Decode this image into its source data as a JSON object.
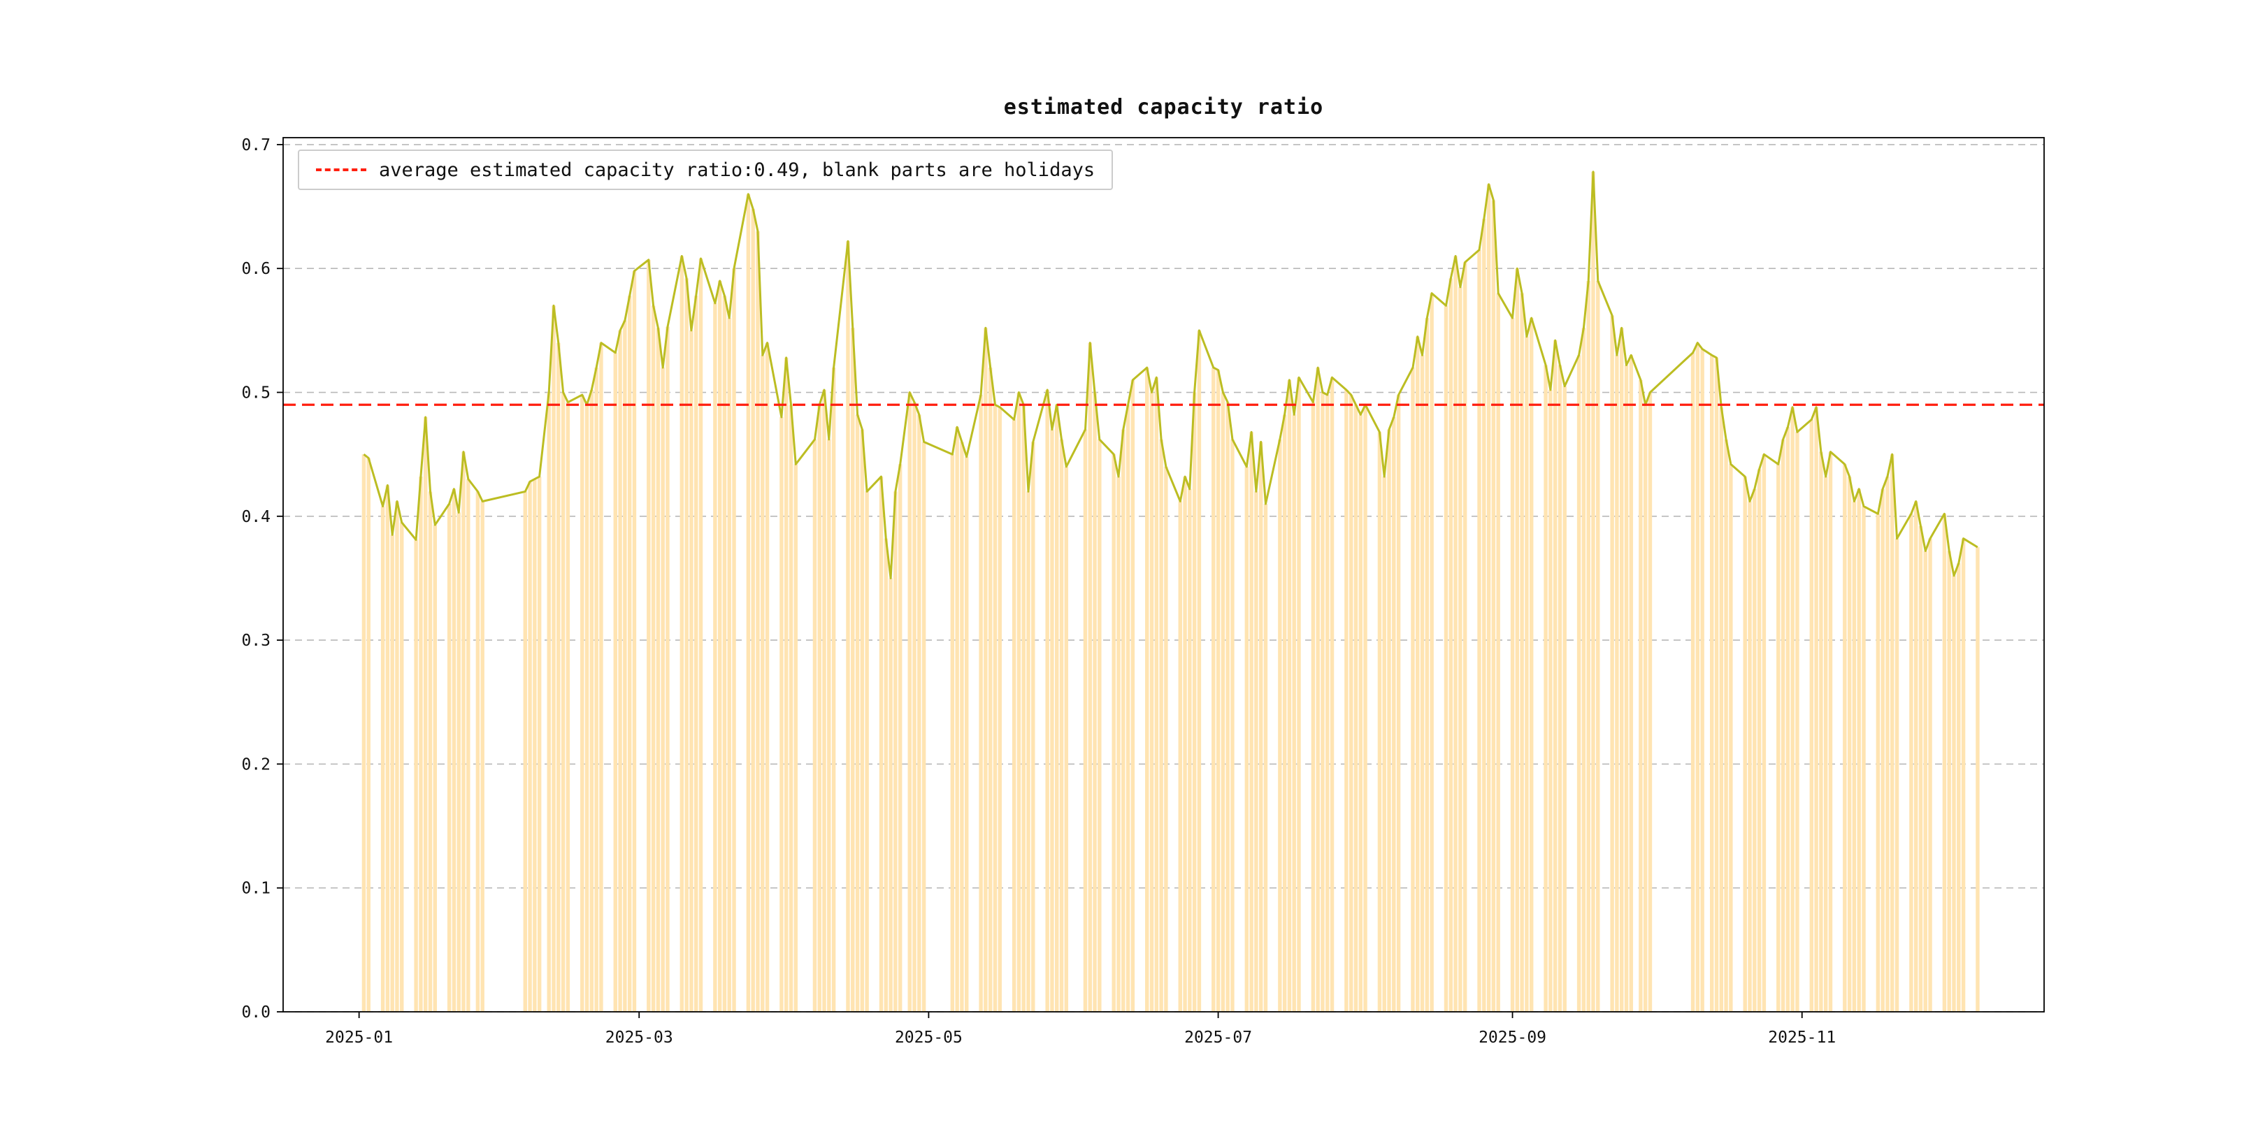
{
  "chart_data": {
    "type": "line",
    "title": "estimated capacity ratio",
    "legend_label": "average estimated capacity ratio:0.49, blank parts are holidays",
    "legend_position": "upper left",
    "average_value": 0.49,
    "ylim": [
      0.0,
      0.7
    ],
    "yticks": [
      0.0,
      0.1,
      0.2,
      0.3,
      0.4,
      0.5,
      0.6,
      0.7
    ],
    "ytick_labels": [
      "0.0",
      "0.1",
      "0.2",
      "0.3",
      "0.4",
      "0.5",
      "0.6",
      "0.7"
    ],
    "xticks": [
      {
        "label": "2025-01",
        "date": "2025-01-01"
      },
      {
        "label": "2025-03",
        "date": "2025-03-01"
      },
      {
        "label": "2025-05",
        "date": "2025-05-01"
      },
      {
        "label": "2025-07",
        "date": "2025-07-01"
      },
      {
        "label": "2025-09",
        "date": "2025-09-01"
      },
      {
        "label": "2025-11",
        "date": "2025-11-01"
      }
    ],
    "x_domain": [
      "2024-12-16",
      "2025-12-22"
    ],
    "grid": {
      "axis": "y",
      "style": "dashed"
    },
    "colors": {
      "line": "#bcbd22",
      "fill": "#ffe4b2",
      "average": "#ff1f0f",
      "grid": "#b8b8b8",
      "axes": "#000000",
      "background": "#ffffff"
    },
    "series": [
      {
        "name": "estimated capacity ratio",
        "dates": [
          "2025-01-02",
          "2025-01-03",
          "2025-01-06",
          "2025-01-07",
          "2025-01-08",
          "2025-01-09",
          "2025-01-10",
          "2025-01-13",
          "2025-01-14",
          "2025-01-15",
          "2025-01-16",
          "2025-01-17",
          "2025-01-20",
          "2025-01-21",
          "2025-01-22",
          "2025-01-23",
          "2025-01-24",
          "2025-01-26",
          "2025-01-27",
          "2025-02-05",
          "2025-02-06",
          "2025-02-07",
          "2025-02-08",
          "2025-02-10",
          "2025-02-11",
          "2025-02-12",
          "2025-02-13",
          "2025-02-14",
          "2025-02-17",
          "2025-02-18",
          "2025-02-19",
          "2025-02-20",
          "2025-02-21",
          "2025-02-24",
          "2025-02-25",
          "2025-02-26",
          "2025-02-27",
          "2025-02-28",
          "2025-03-03",
          "2025-03-04",
          "2025-03-05",
          "2025-03-06",
          "2025-03-07",
          "2025-03-10",
          "2025-03-11",
          "2025-03-12",
          "2025-03-13",
          "2025-03-14",
          "2025-03-17",
          "2025-03-18",
          "2025-03-19",
          "2025-03-20",
          "2025-03-21",
          "2025-03-24",
          "2025-03-25",
          "2025-03-26",
          "2025-03-27",
          "2025-03-28",
          "2025-03-31",
          "2025-04-01",
          "2025-04-02",
          "2025-04-03",
          "2025-04-07",
          "2025-04-08",
          "2025-04-09",
          "2025-04-10",
          "2025-04-11",
          "2025-04-14",
          "2025-04-15",
          "2025-04-16",
          "2025-04-17",
          "2025-04-18",
          "2025-04-21",
          "2025-04-22",
          "2025-04-23",
          "2025-04-24",
          "2025-04-25",
          "2025-04-27",
          "2025-04-28",
          "2025-04-29",
          "2025-04-30",
          "2025-05-06",
          "2025-05-07",
          "2025-05-08",
          "2025-05-09",
          "2025-05-12",
          "2025-05-13",
          "2025-05-14",
          "2025-05-15",
          "2025-05-16",
          "2025-05-19",
          "2025-05-20",
          "2025-05-21",
          "2025-05-22",
          "2025-05-23",
          "2025-05-26",
          "2025-05-27",
          "2025-05-28",
          "2025-05-29",
          "2025-05-30",
          "2025-06-03",
          "2025-06-04",
          "2025-06-05",
          "2025-06-06",
          "2025-06-09",
          "2025-06-10",
          "2025-06-11",
          "2025-06-12",
          "2025-06-13",
          "2025-06-16",
          "2025-06-17",
          "2025-06-18",
          "2025-06-19",
          "2025-06-20",
          "2025-06-23",
          "2025-06-24",
          "2025-06-25",
          "2025-06-26",
          "2025-06-27",
          "2025-06-30",
          "2025-07-01",
          "2025-07-02",
          "2025-07-03",
          "2025-07-04",
          "2025-07-07",
          "2025-07-08",
          "2025-07-09",
          "2025-07-10",
          "2025-07-11",
          "2025-07-14",
          "2025-07-15",
          "2025-07-16",
          "2025-07-17",
          "2025-07-18",
          "2025-07-21",
          "2025-07-22",
          "2025-07-23",
          "2025-07-24",
          "2025-07-25",
          "2025-07-28",
          "2025-07-29",
          "2025-07-30",
          "2025-07-31",
          "2025-08-01",
          "2025-08-04",
          "2025-08-05",
          "2025-08-06",
          "2025-08-07",
          "2025-08-08",
          "2025-08-11",
          "2025-08-12",
          "2025-08-13",
          "2025-08-14",
          "2025-08-15",
          "2025-08-18",
          "2025-08-19",
          "2025-08-20",
          "2025-08-21",
          "2025-08-22",
          "2025-08-25",
          "2025-08-26",
          "2025-08-27",
          "2025-08-28",
          "2025-08-29",
          "2025-09-01",
          "2025-09-02",
          "2025-09-03",
          "2025-09-04",
          "2025-09-05",
          "2025-09-08",
          "2025-09-09",
          "2025-09-10",
          "2025-09-11",
          "2025-09-12",
          "2025-09-15",
          "2025-09-16",
          "2025-09-17",
          "2025-09-18",
          "2025-09-19",
          "2025-09-22",
          "2025-09-23",
          "2025-09-24",
          "2025-09-25",
          "2025-09-26",
          "2025-09-28",
          "2025-09-29",
          "2025-09-30",
          "2025-10-09",
          "2025-10-10",
          "2025-10-11",
          "2025-10-13",
          "2025-10-14",
          "2025-10-15",
          "2025-10-16",
          "2025-10-17",
          "2025-10-20",
          "2025-10-21",
          "2025-10-22",
          "2025-10-23",
          "2025-10-24",
          "2025-10-27",
          "2025-10-28",
          "2025-10-29",
          "2025-10-30",
          "2025-10-31",
          "2025-11-03",
          "2025-11-04",
          "2025-11-05",
          "2025-11-06",
          "2025-11-07",
          "2025-11-10",
          "2025-11-11",
          "2025-11-12",
          "2025-11-13",
          "2025-11-14",
          "2025-11-17",
          "2025-11-18",
          "2025-11-19",
          "2025-11-20",
          "2025-11-21",
          "2025-11-24",
          "2025-11-25",
          "2025-11-26",
          "2025-11-27",
          "2025-11-28",
          "2025-12-01",
          "2025-12-02",
          "2025-12-03",
          "2025-12-04",
          "2025-12-05",
          "2025-12-08"
        ],
        "values": [
          0.45,
          0.447,
          0.408,
          0.425,
          0.385,
          0.412,
          0.395,
          0.381,
          0.432,
          0.48,
          0.42,
          0.393,
          0.41,
          0.422,
          0.403,
          0.452,
          0.43,
          0.42,
          0.412,
          0.42,
          0.428,
          0.43,
          0.432,
          0.5,
          0.57,
          0.54,
          0.5,
          0.492,
          0.498,
          0.49,
          0.502,
          0.52,
          0.54,
          0.532,
          0.55,
          0.558,
          0.578,
          0.598,
          0.607,
          0.57,
          0.552,
          0.52,
          0.553,
          0.61,
          0.592,
          0.55,
          0.578,
          0.608,
          0.572,
          0.59,
          0.578,
          0.56,
          0.6,
          0.66,
          0.648,
          0.63,
          0.53,
          0.54,
          0.48,
          0.528,
          0.49,
          0.442,
          0.462,
          0.49,
          0.502,
          0.462,
          0.52,
          0.622,
          0.552,
          0.482,
          0.47,
          0.42,
          0.432,
          0.382,
          0.35,
          0.42,
          0.442,
          0.5,
          0.492,
          0.482,
          0.46,
          0.45,
          0.472,
          0.46,
          0.448,
          0.498,
          0.552,
          0.52,
          0.49,
          0.488,
          0.478,
          0.5,
          0.49,
          0.42,
          0.46,
          0.502,
          0.47,
          0.49,
          0.462,
          0.44,
          0.47,
          0.54,
          0.5,
          0.462,
          0.45,
          0.432,
          0.47,
          0.49,
          0.51,
          0.52,
          0.5,
          0.512,
          0.462,
          0.44,
          0.412,
          0.432,
          0.422,
          0.5,
          0.55,
          0.52,
          0.518,
          0.5,
          0.492,
          0.462,
          0.44,
          0.468,
          0.42,
          0.46,
          0.41,
          0.462,
          0.482,
          0.51,
          0.482,
          0.512,
          0.492,
          0.52,
          0.5,
          0.498,
          0.512,
          0.502,
          0.498,
          0.49,
          0.482,
          0.49,
          0.468,
          0.432,
          0.47,
          0.48,
          0.498,
          0.52,
          0.545,
          0.53,
          0.56,
          0.58,
          0.57,
          0.592,
          0.61,
          0.585,
          0.605,
          0.615,
          0.64,
          0.668,
          0.655,
          0.58,
          0.56,
          0.6,
          0.58,
          0.545,
          0.56,
          0.522,
          0.502,
          0.542,
          0.522,
          0.505,
          0.53,
          0.552,
          0.59,
          0.678,
          0.59,
          0.562,
          0.53,
          0.552,
          0.522,
          0.53,
          0.51,
          0.49,
          0.5,
          0.532,
          0.54,
          0.535,
          0.53,
          0.528,
          0.488,
          0.462,
          0.442,
          0.432,
          0.412,
          0.422,
          0.438,
          0.45,
          0.442,
          0.462,
          0.472,
          0.488,
          0.468,
          0.478,
          0.488,
          0.452,
          0.432,
          0.452,
          0.442,
          0.432,
          0.412,
          0.422,
          0.408,
          0.402,
          0.422,
          0.432,
          0.45,
          0.382,
          0.402,
          0.412,
          0.392,
          0.372,
          0.382,
          0.402,
          0.372,
          0.352,
          0.362,
          0.382,
          0.375
        ]
      }
    ]
  }
}
